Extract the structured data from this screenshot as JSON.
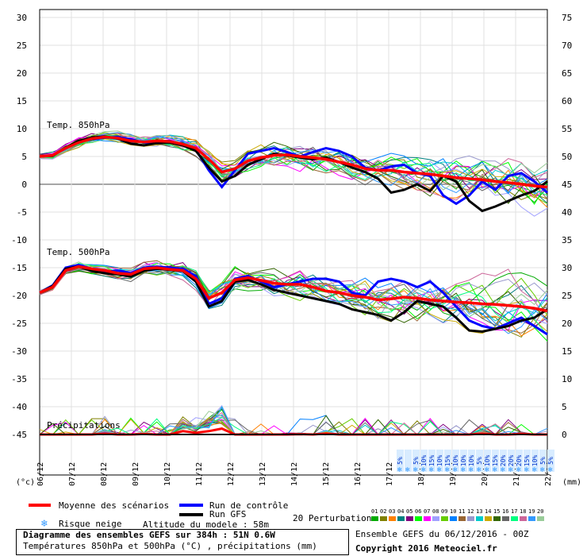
{
  "chart_data": {
    "type": "line",
    "title": "Diagramme des ensembles GEFS sur 384h : 51N 0.6W",
    "subtitle": "Températures 850hPa et 500hPa (°C) , précipitations (mm)",
    "y_left_label": "(°c)",
    "y_right_label": "(mm)",
    "y_left_ticks": [
      30,
      25,
      20,
      15,
      10,
      5,
      0,
      -5,
      -10,
      -15,
      -20,
      -25,
      -30,
      -35,
      -40,
      -45
    ],
    "y_right_ticks": [
      75,
      70,
      65,
      60,
      55,
      50,
      45,
      40,
      35,
      30,
      25,
      20,
      15,
      10,
      5,
      0
    ],
    "ylim_left": [
      -45,
      30
    ],
    "ylim_right": [
      0,
      75
    ],
    "x_ticks": [
      "06/12",
      "07/12",
      "08/12",
      "09/12",
      "10/12",
      "11/12",
      "12/12",
      "13/12",
      "14/12",
      "15/12",
      "16/12",
      "17/12",
      "18/12",
      "19/12",
      "20/12",
      "21/12",
      "22/12"
    ],
    "panels": [
      {
        "label": "Temp. 850hPa"
      },
      {
        "label": "Temp. 500hPa"
      },
      {
        "label": "Précipitations"
      }
    ],
    "series_850_mean": [
      5,
      5.2,
      6.5,
      7.5,
      8.2,
      8.5,
      8.3,
      7.8,
      7.6,
      7.8,
      7.7,
      7.2,
      6.5,
      4.5,
      2.2,
      2.8,
      4.2,
      4.8,
      5.2,
      5.3,
      5.0,
      4.8,
      4.5,
      4.0,
      3.5,
      2.8,
      2.5,
      2.5,
      2.2,
      2.0,
      1.8,
      1.5,
      1.2,
      1.0,
      0.8,
      0.5,
      0.3,
      0.0,
      -0.3,
      -0.5
    ],
    "series_850_control": [
      5,
      5.2,
      6.5,
      7.6,
      8.1,
      8.4,
      8.5,
      8.1,
      7.5,
      7.7,
      7.8,
      7.0,
      6.2,
      2.5,
      -0.5,
      2.5,
      5.5,
      6.0,
      6.5,
      5.8,
      5.0,
      5.8,
      6.5,
      6.0,
      5.0,
      3.0,
      2.5,
      3.2,
      3.5,
      2.0,
      1.5,
      -2.0,
      -3.5,
      -2.0,
      0.5,
      -1.0,
      1.5,
      2.0,
      0.5,
      -1.5
    ],
    "series_850_gfs": [
      5,
      5.1,
      6.6,
      7.8,
      8.4,
      8.6,
      8.2,
      7.3,
      7.0,
      7.4,
      7.5,
      7.0,
      6.0,
      3.0,
      0.5,
      1.5,
      3.5,
      4.5,
      5.5,
      5.2,
      4.8,
      4.5,
      4.8,
      4.0,
      3.0,
      2.2,
      1.0,
      -1.5,
      -1.0,
      0.0,
      -1.2,
      1.5,
      0.5,
      -3.0,
      -4.8,
      -4.0,
      -3.0,
      -2.0,
      -1.2,
      0.5
    ],
    "series_500_mean": [
      -19.5,
      -18.5,
      -15.5,
      -14.8,
      -15.2,
      -15.5,
      -16.0,
      -16.2,
      -15.2,
      -15.0,
      -15.3,
      -15.5,
      -17.0,
      -20.5,
      -19.5,
      -17.2,
      -16.8,
      -17.3,
      -17.8,
      -18.0,
      -18.0,
      -18.5,
      -19.2,
      -19.5,
      -20.0,
      -20.3,
      -20.8,
      -20.6,
      -20.3,
      -20.5,
      -20.8,
      -21.0,
      -21.2,
      -21.3,
      -21.5,
      -21.6,
      -21.8,
      -22.0,
      -22.3,
      -22.8
    ],
    "series_500_control": [
      -19.5,
      -18.2,
      -15.0,
      -14.5,
      -15.2,
      -15.8,
      -15.5,
      -16.0,
      -15.0,
      -14.8,
      -15.0,
      -15.2,
      -16.5,
      -21.5,
      -20.5,
      -17.0,
      -16.5,
      -17.5,
      -18.5,
      -18.0,
      -17.5,
      -17.0,
      -17.0,
      -17.5,
      -19.5,
      -20.0,
      -17.5,
      -17.0,
      -17.5,
      -18.5,
      -17.5,
      -19.5,
      -22.0,
      -24.5,
      -25.5,
      -26.0,
      -25.0,
      -24.0,
      -25.5,
      -27.0
    ],
    "series_500_gfs": [
      -19.5,
      -18.3,
      -15.2,
      -14.8,
      -15.6,
      -16.0,
      -16.2,
      -16.6,
      -15.6,
      -15.2,
      -15.4,
      -15.6,
      -17.5,
      -22.0,
      -21.0,
      -17.5,
      -17.2,
      -18.0,
      -19.0,
      -19.5,
      -20.0,
      -20.5,
      -21.0,
      -21.5,
      -22.5,
      -23.0,
      -23.5,
      -24.5,
      -23.0,
      -21.0,
      -21.5,
      -22.0,
      -24.0,
      -26.3,
      -26.5,
      -26.0,
      -25.5,
      -24.5,
      -24.0,
      -22.5
    ],
    "precip_peaks": [
      0,
      0,
      0,
      0,
      0,
      0.5,
      0,
      0,
      0.3,
      0,
      0,
      2,
      1,
      2,
      3.5,
      0,
      0,
      0,
      0,
      0,
      0.2,
      0,
      0.5,
      0,
      0,
      0,
      0,
      0,
      0,
      0,
      0,
      0,
      0,
      0,
      0.5,
      0,
      0,
      0.3,
      0,
      0
    ],
    "snow_risk_percent": [
      "5%",
      "",
      "5%",
      "10%",
      "15%",
      "10%",
      "15%",
      "10%",
      "10%",
      "10%",
      "5%",
      "10%",
      "15%",
      "20%",
      "20%",
      "20%",
      "15%",
      "10%",
      "5%",
      "5%"
    ]
  },
  "legend": {
    "mean": "Moyenne des scénarios",
    "control": "Run de contrôle",
    "gfs": "Run GFS",
    "perturbations": "20 Perturbations",
    "snow_risk": "Risque neige",
    "altitude": "Altitude du modele : 58m",
    "pert_numbers": [
      "01",
      "02",
      "03",
      "04",
      "05",
      "06",
      "07",
      "08",
      "09",
      "10",
      "11",
      "12",
      "13",
      "14",
      "15",
      "16",
      "17",
      "18",
      "19",
      "20"
    ]
  },
  "colors": {
    "mean": "#ff0000",
    "control": "#0000ff",
    "gfs": "#000000",
    "pert": [
      "#00aa00",
      "#808000",
      "#ff8000",
      "#008080",
      "#800080",
      "#00ff00",
      "#ff00ff",
      "#a0a0ff",
      "#66cc00",
      "#0080ff",
      "#996633",
      "#9999cc",
      "#00cccc",
      "#ccaa00",
      "#336600",
      "#666666",
      "#00ff80",
      "#cc6699",
      "#3399ff",
      "#99cc99"
    ]
  },
  "footer": {
    "title": "Diagramme des ensembles GEFS sur 384h : 51N 0.6W",
    "subtitle": "Températures 850hPa et 500hPa (°C) , précipitations (mm)",
    "run_info": "Ensemble GEFS du 06/12/2016 - 00Z",
    "copyright": "Copyright 2016 Meteociel.fr"
  }
}
